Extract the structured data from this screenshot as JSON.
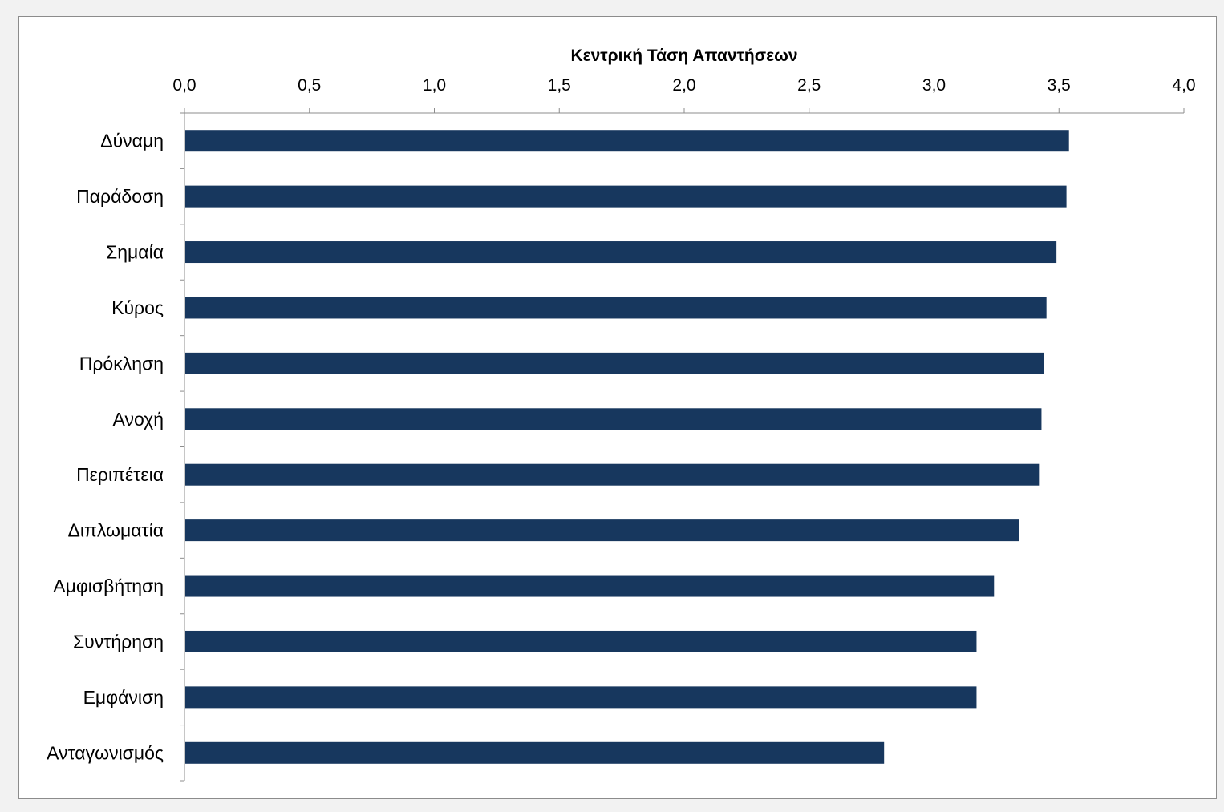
{
  "chart_data": {
    "type": "bar",
    "orientation": "horizontal",
    "xlabel": "Κεντρική Τάση Απαντήσεων",
    "xlabel_position": "top",
    "xlim": [
      0,
      4.0
    ],
    "x_ticks": [
      "0,0",
      "0,5",
      "1,0",
      "1,5",
      "2,0",
      "2,5",
      "3,0",
      "3,5",
      "4,0"
    ],
    "grid": false,
    "bar_color": "#17375e",
    "categories": [
      "Δύναμη",
      "Παράδοση",
      "Σημαία",
      "Κύρος",
      "Πρόκληση",
      "Ανοχή",
      "Περιπέτεια",
      "Διπλωματία",
      "Αμφισβήτηση",
      "Συντήρηση",
      "Εμφάνιση",
      "Ανταγωνισμός"
    ],
    "values": [
      3.54,
      3.53,
      3.49,
      3.45,
      3.44,
      3.43,
      3.42,
      3.34,
      3.24,
      3.17,
      3.17,
      2.8
    ]
  }
}
